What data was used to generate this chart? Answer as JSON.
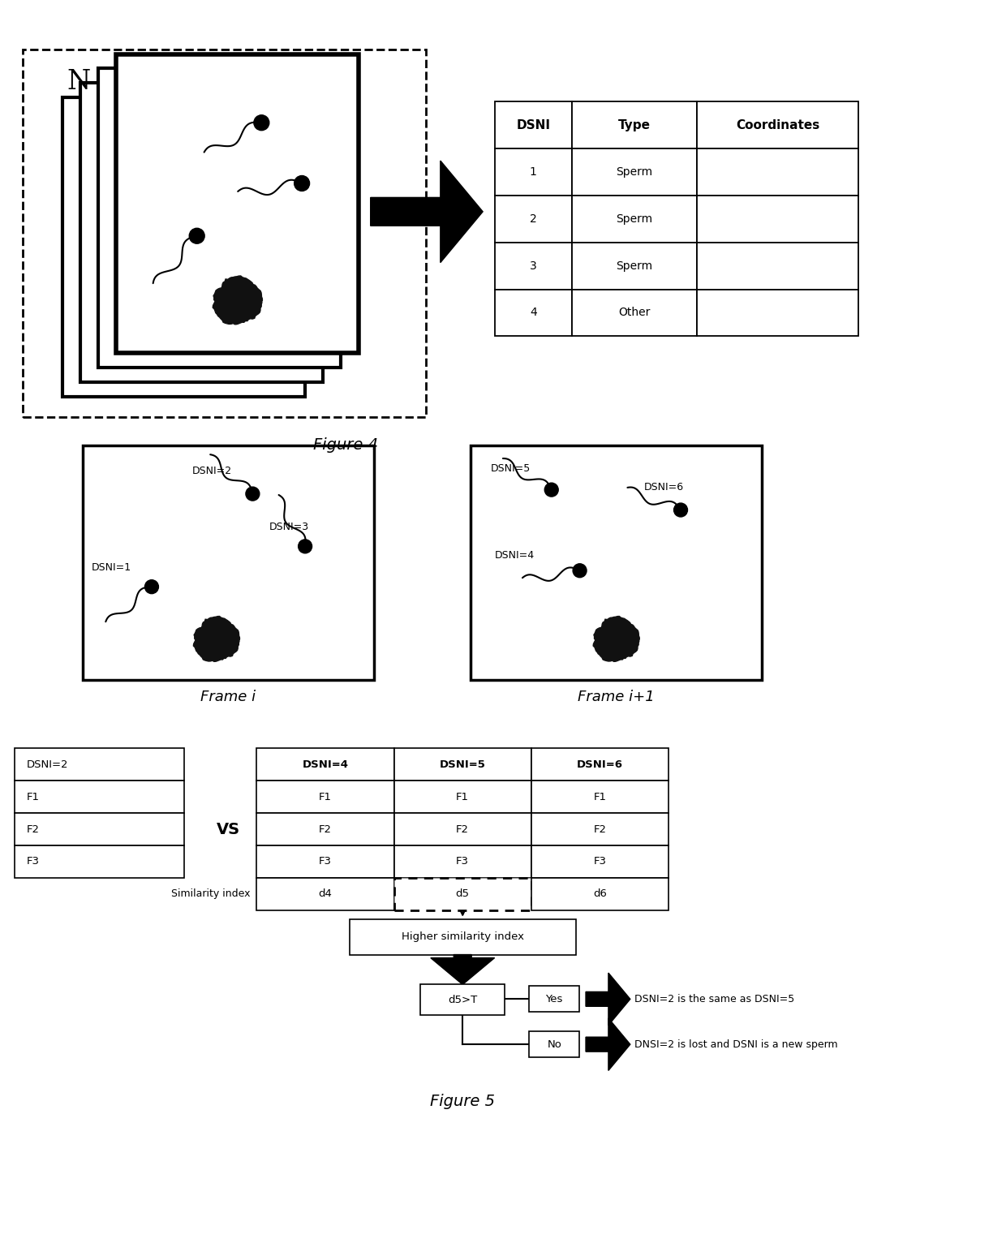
{
  "fig_width": 12.4,
  "fig_height": 15.48,
  "bg_color": "#ffffff",
  "fig4_caption": "Figure 4",
  "fig5_caption": "Figure 5",
  "table4_headers": [
    "DSNI",
    "Type",
    "Coordinates"
  ],
  "table4_rows": [
    [
      "1",
      "Sperm",
      ""
    ],
    [
      "2",
      "Sperm",
      ""
    ],
    [
      "3",
      "Sperm",
      ""
    ],
    [
      "4",
      "Other",
      ""
    ]
  ],
  "frame_i_label": "Frame i",
  "frame_i1_label": "Frame i+1",
  "left_table_header": "DSNI=2",
  "left_table_rows": [
    "F1",
    "F2",
    "F3"
  ],
  "vs_text": "VS",
  "right_table_headers": [
    "DSNI=4",
    "DSNI=5",
    "DSNI=6"
  ],
  "right_table_rows": [
    [
      "F1",
      "F1",
      "F1"
    ],
    [
      "F2",
      "F2",
      "F2"
    ],
    [
      "F3",
      "F3",
      "F3"
    ],
    [
      "d4",
      "d5",
      "d6"
    ]
  ],
  "similarity_index_label": "Similarity index",
  "higher_sim_text": "Higher similarity index",
  "d5T_text": "d5>T",
  "yes_text": "Yes",
  "no_text": "No",
  "yes_result": "DSNI=2 is the same as DSNI=5",
  "no_result": "DNSI=2 is lost and DSNI is a new sperm",
  "N_label": "N"
}
